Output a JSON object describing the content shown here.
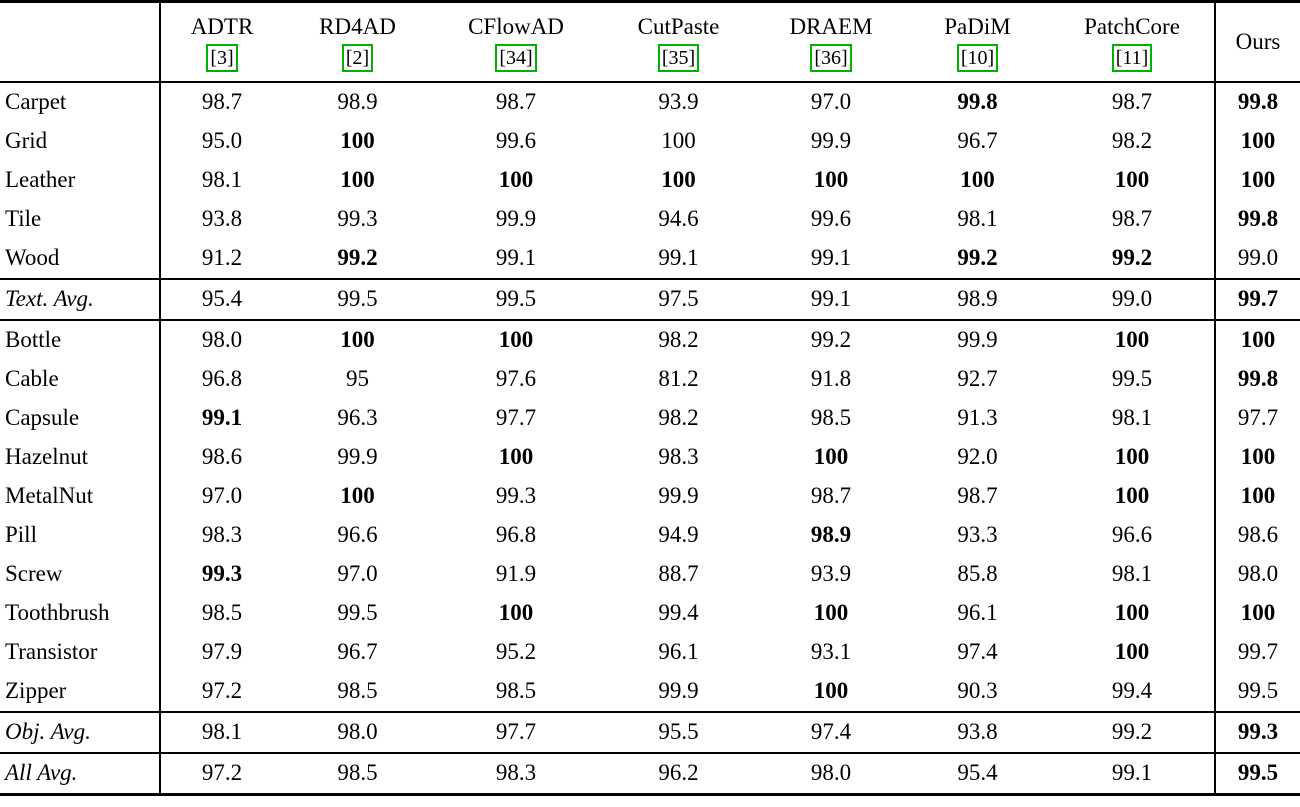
{
  "table": {
    "cite_color": "#00b300",
    "columns": [
      {
        "name": "ADTR",
        "cite": "[3]"
      },
      {
        "name": "RD4AD",
        "cite": "[2]"
      },
      {
        "name": "CFlowAD",
        "cite": "[34]"
      },
      {
        "name": "CutPaste",
        "cite": "[35]"
      },
      {
        "name": "DRAEM",
        "cite": "[36]"
      },
      {
        "name": "PaDiM",
        "cite": "[10]"
      },
      {
        "name": "PatchCore",
        "cite": "[11]"
      },
      {
        "name": "Ours",
        "cite": ""
      }
    ],
    "sections": [
      {
        "name": "textures",
        "rows": [
          {
            "label": "Carpet",
            "italic": false,
            "values": [
              "98.7",
              "98.9",
              "98.7",
              "93.9",
              "97.0",
              "99.8",
              "98.7",
              "99.8"
            ],
            "bold": [
              0,
              0,
              0,
              0,
              0,
              1,
              0,
              1
            ]
          },
          {
            "label": "Grid",
            "italic": false,
            "values": [
              "95.0",
              "100",
              "99.6",
              "100",
              "99.9",
              "96.7",
              "98.2",
              "100"
            ],
            "bold": [
              0,
              1,
              0,
              0,
              0,
              0,
              0,
              1
            ]
          },
          {
            "label": "Leather",
            "italic": false,
            "values": [
              "98.1",
              "100",
              "100",
              "100",
              "100",
              "100",
              "100",
              "100"
            ],
            "bold": [
              0,
              1,
              1,
              1,
              1,
              1,
              1,
              1
            ]
          },
          {
            "label": "Tile",
            "italic": false,
            "values": [
              "93.8",
              "99.3",
              "99.9",
              "94.6",
              "99.6",
              "98.1",
              "98.7",
              "99.8"
            ],
            "bold": [
              0,
              0,
              0,
              0,
              0,
              0,
              0,
              1
            ]
          },
          {
            "label": "Wood",
            "italic": false,
            "values": [
              "91.2",
              "99.2",
              "99.1",
              "99.1",
              "99.1",
              "99.2",
              "99.2",
              "99.0"
            ],
            "bold": [
              0,
              1,
              0,
              0,
              0,
              1,
              1,
              0
            ]
          }
        ]
      },
      {
        "name": "texture-average",
        "rows": [
          {
            "label": "Text. Avg.",
            "italic": true,
            "values": [
              "95.4",
              "99.5",
              "99.5",
              "97.5",
              "99.1",
              "98.9",
              "99.0",
              "99.7"
            ],
            "bold": [
              0,
              0,
              0,
              0,
              0,
              0,
              0,
              1
            ]
          }
        ]
      },
      {
        "name": "objects",
        "rows": [
          {
            "label": "Bottle",
            "italic": false,
            "values": [
              "98.0",
              "100",
              "100",
              "98.2",
              "99.2",
              "99.9",
              "100",
              "100"
            ],
            "bold": [
              0,
              1,
              1,
              0,
              0,
              0,
              1,
              1
            ]
          },
          {
            "label": "Cable",
            "italic": false,
            "values": [
              "96.8",
              "95",
              "97.6",
              "81.2",
              "91.8",
              "92.7",
              "99.5",
              "99.8"
            ],
            "bold": [
              0,
              0,
              0,
              0,
              0,
              0,
              0,
              1
            ]
          },
          {
            "label": "Capsule",
            "italic": false,
            "values": [
              "99.1",
              "96.3",
              "97.7",
              "98.2",
              "98.5",
              "91.3",
              "98.1",
              "97.7"
            ],
            "bold": [
              1,
              0,
              0,
              0,
              0,
              0,
              0,
              0
            ]
          },
          {
            "label": "Hazelnut",
            "italic": false,
            "values": [
              "98.6",
              "99.9",
              "100",
              "98.3",
              "100",
              "92.0",
              "100",
              "100"
            ],
            "bold": [
              0,
              0,
              1,
              0,
              1,
              0,
              1,
              1
            ]
          },
          {
            "label": "MetalNut",
            "italic": false,
            "values": [
              "97.0",
              "100",
              "99.3",
              "99.9",
              "98.7",
              "98.7",
              "100",
              "100"
            ],
            "bold": [
              0,
              1,
              0,
              0,
              0,
              0,
              1,
              1
            ]
          },
          {
            "label": "Pill",
            "italic": false,
            "values": [
              "98.3",
              "96.6",
              "96.8",
              "94.9",
              "98.9",
              "93.3",
              "96.6",
              "98.6"
            ],
            "bold": [
              0,
              0,
              0,
              0,
              1,
              0,
              0,
              0
            ]
          },
          {
            "label": "Screw",
            "italic": false,
            "values": [
              "99.3",
              "97.0",
              "91.9",
              "88.7",
              "93.9",
              "85.8",
              "98.1",
              "98.0"
            ],
            "bold": [
              1,
              0,
              0,
              0,
              0,
              0,
              0,
              0
            ]
          },
          {
            "label": "Toothbrush",
            "italic": false,
            "values": [
              "98.5",
              "99.5",
              "100",
              "99.4",
              "100",
              "96.1",
              "100",
              "100"
            ],
            "bold": [
              0,
              0,
              1,
              0,
              1,
              0,
              1,
              1
            ]
          },
          {
            "label": "Transistor",
            "italic": false,
            "values": [
              "97.9",
              "96.7",
              "95.2",
              "96.1",
              "93.1",
              "97.4",
              "100",
              "99.7"
            ],
            "bold": [
              0,
              0,
              0,
              0,
              0,
              0,
              1,
              0
            ]
          },
          {
            "label": "Zipper",
            "italic": false,
            "values": [
              "97.2",
              "98.5",
              "98.5",
              "99.9",
              "100",
              "90.3",
              "99.4",
              "99.5"
            ],
            "bold": [
              0,
              0,
              0,
              0,
              1,
              0,
              0,
              0
            ]
          }
        ]
      },
      {
        "name": "object-average",
        "rows": [
          {
            "label": "Obj. Avg.",
            "italic": true,
            "values": [
              "98.1",
              "98.0",
              "97.7",
              "95.5",
              "97.4",
              "93.8",
              "99.2",
              "99.3"
            ],
            "bold": [
              0,
              0,
              0,
              0,
              0,
              0,
              0,
              1
            ]
          }
        ]
      },
      {
        "name": "all-average",
        "rows": [
          {
            "label": "All Avg.",
            "italic": true,
            "values": [
              "97.2",
              "98.5",
              "98.3",
              "96.2",
              "98.0",
              "95.4",
              "99.1",
              "99.5"
            ],
            "bold": [
              0,
              0,
              0,
              0,
              0,
              0,
              0,
              1
            ]
          }
        ]
      }
    ]
  }
}
